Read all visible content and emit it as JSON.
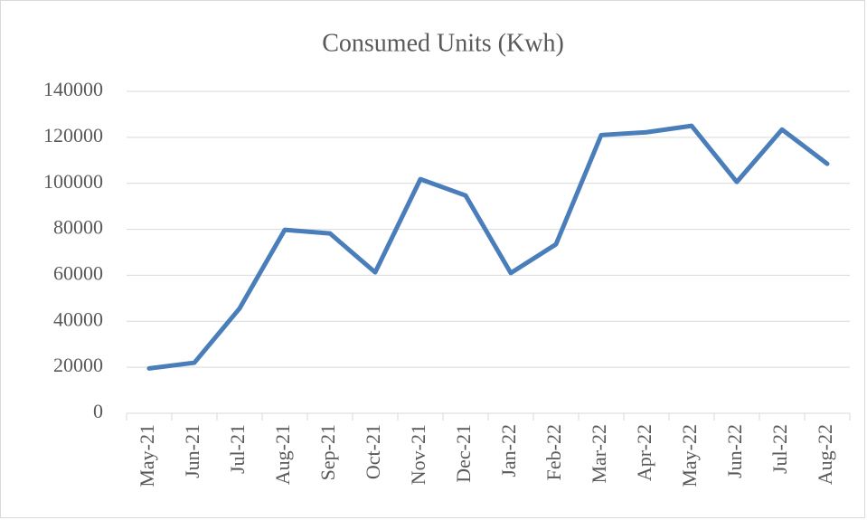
{
  "chart_data": {
    "type": "line",
    "title": "Consumed Units (Kwh)",
    "categories": [
      "May-21",
      "Jun-21",
      "Jul-21",
      "Aug-21",
      "Sep-21",
      "Oct-21",
      "Nov-21",
      "Dec-21",
      "Jan-22",
      "Feb-22",
      "Mar-22",
      "Apr-22",
      "May-22",
      "Jun-22",
      "Jul-22",
      "Aug-22"
    ],
    "series": [
      {
        "name": "Consumed Units (Kwh)",
        "color": "#4a7ebb",
        "values": [
          19500,
          22000,
          45600,
          79800,
          78200,
          61300,
          101800,
          94700,
          61000,
          73500,
          121000,
          122200,
          125000,
          100600,
          123400,
          108500
        ]
      }
    ],
    "ylim": [
      0,
      140000
    ],
    "yticks": [
      0,
      20000,
      40000,
      60000,
      80000,
      100000,
      120000,
      140000
    ],
    "grid": true
  }
}
